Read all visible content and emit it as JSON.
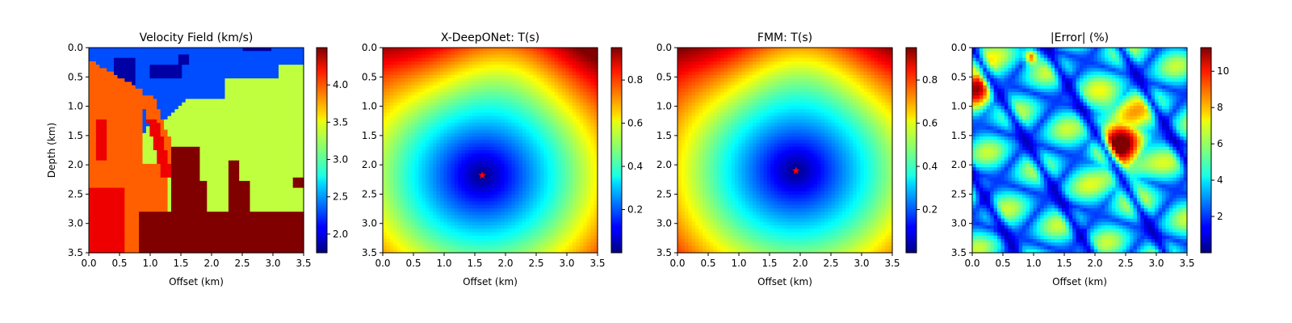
{
  "chart_data": [
    {
      "type": "heatmap",
      "title": "Velocity Field (km/s)",
      "xlabel": "Offset (km)",
      "ylabel": "Depth (km)",
      "xlim": [
        0,
        3.5
      ],
      "ylim": [
        3.5,
        0
      ],
      "xticks": [
        "0.0",
        "0.5",
        "1.0",
        "1.5",
        "2.0",
        "2.5",
        "3.0",
        "3.5"
      ],
      "yticks": [
        "0.0",
        "0.5",
        "1.0",
        "1.5",
        "2.0",
        "2.5",
        "3.0",
        "3.5"
      ],
      "colormap": "jet",
      "colorbar": {
        "range": [
          1.75,
          4.5
        ],
        "ticks": [
          "2.0",
          "2.5",
          "3.0",
          "3.5",
          "4.0"
        ]
      },
      "field": "velocity"
    },
    {
      "type": "heatmap",
      "title": "X-DeepONet: T(s)",
      "xlabel": "Offset (km)",
      "ylabel": "",
      "xlim": [
        0,
        3.5
      ],
      "ylim": [
        3.5,
        0
      ],
      "xticks": [
        "0.0",
        "0.5",
        "1.0",
        "1.5",
        "2.0",
        "2.5",
        "3.0",
        "3.5"
      ],
      "yticks": [
        "0.0",
        "0.5",
        "1.0",
        "1.5",
        "2.0",
        "2.5",
        "3.0",
        "3.5"
      ],
      "colormap": "jet",
      "colorbar": {
        "range": [
          0.0,
          0.95
        ],
        "ticks": [
          "0.2",
          "0.4",
          "0.6",
          "0.8"
        ]
      },
      "field": "traveltime",
      "source": {
        "x": 1.62,
        "y": 2.18
      },
      "source_color": "#ff0000"
    },
    {
      "type": "heatmap",
      "title": "FMM: T(s)",
      "xlabel": "Offset (km)",
      "ylabel": "",
      "xlim": [
        0,
        3.5
      ],
      "ylim": [
        3.5,
        0
      ],
      "xticks": [
        "0.0",
        "0.5",
        "1.0",
        "1.5",
        "2.0",
        "2.5",
        "3.0",
        "3.5"
      ],
      "yticks": [
        "0.0",
        "0.5",
        "1.0",
        "1.5",
        "2.0",
        "2.5",
        "3.0",
        "3.5"
      ],
      "colormap": "jet",
      "colorbar": {
        "range": [
          0.0,
          0.95
        ],
        "ticks": [
          "0.2",
          "0.4",
          "0.6",
          "0.8"
        ]
      },
      "field": "traveltime",
      "source": {
        "x": 1.93,
        "y": 2.1
      },
      "source_color": "#ff0000"
    },
    {
      "type": "heatmap",
      "title": "|Error| (%)",
      "xlabel": "Offset (km)",
      "ylabel": "",
      "xlim": [
        0,
        3.5
      ],
      "ylim": [
        3.5,
        0
      ],
      "xticks": [
        "0.0",
        "0.5",
        "1.0",
        "1.5",
        "2.0",
        "2.5",
        "3.0",
        "3.5"
      ],
      "yticks": [
        "0.0",
        "0.5",
        "1.0",
        "1.5",
        "2.0",
        "2.5",
        "3.0",
        "3.5"
      ],
      "colormap": "jet",
      "colorbar": {
        "range": [
          0.0,
          11.3
        ],
        "ticks": [
          "2",
          "4",
          "6",
          "8",
          "10"
        ]
      },
      "field": "error"
    }
  ]
}
